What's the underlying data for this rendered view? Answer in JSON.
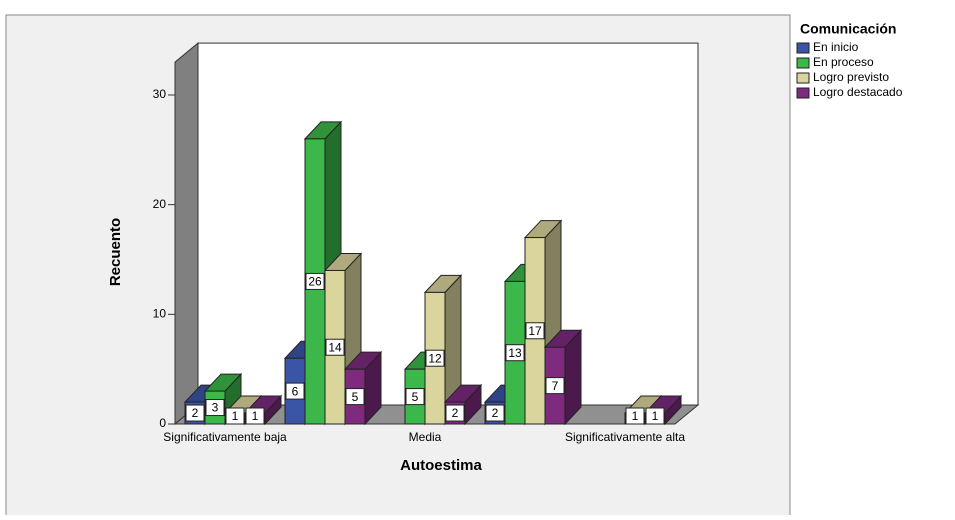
{
  "chart_data": {
    "type": "bar3d",
    "x_label": "Autoestima",
    "y_label": "Recuento",
    "legend_title": "Comunicación",
    "categories": [
      "Significativamente baja",
      null,
      "Media",
      null,
      "Significativamente alta"
    ],
    "series": [
      {
        "name": "En inicio",
        "color": "#3b55a6",
        "values": [
          2,
          6,
          null,
          2,
          null
        ]
      },
      {
        "name": "En proceso",
        "color": "#3cb84a",
        "values": [
          3,
          26,
          5,
          13,
          null
        ]
      },
      {
        "name": "Logro previsto",
        "color": "#d9d59c",
        "values": [
          1,
          14,
          12,
          17,
          1
        ]
      },
      {
        "name": "Logro destacado",
        "color": "#7d2a7f",
        "values": [
          1,
          5,
          2,
          7,
          1
        ]
      }
    ],
    "ylim": [
      0,
      33
    ],
    "yticks": [
      0,
      10,
      20,
      30
    ],
    "legend": "right"
  }
}
